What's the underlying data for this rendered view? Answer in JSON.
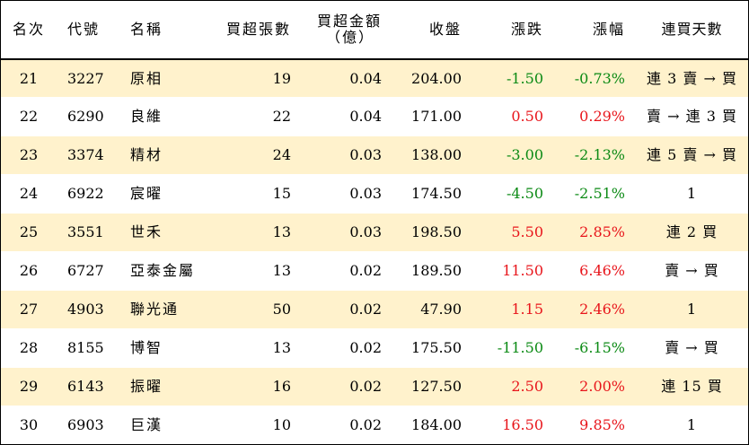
{
  "table": {
    "headers": {
      "rank": "名次",
      "code": "代號",
      "name": "名稱",
      "net_buy_lots": "買超張數",
      "net_buy_amount_line1": "買超金額",
      "net_buy_amount_line2": "（億）",
      "close": "收盤",
      "change": "漲跌",
      "change_pct": "漲幅",
      "streak": "連買天數"
    },
    "rows": [
      {
        "rank": "21",
        "code": "3227",
        "name": "原相",
        "net_buy_lots": "19",
        "net_buy_amount": "0.04",
        "close": "204.00",
        "change": "-1.50",
        "change_pct": "-0.73%",
        "direction": "down",
        "streak": "連 3 賣 → 買"
      },
      {
        "rank": "22",
        "code": "6290",
        "name": "良維",
        "net_buy_lots": "22",
        "net_buy_amount": "0.04",
        "close": "171.00",
        "change": "0.50",
        "change_pct": "0.29%",
        "direction": "up",
        "streak": "賣 → 連 3 買"
      },
      {
        "rank": "23",
        "code": "3374",
        "name": "精材",
        "net_buy_lots": "24",
        "net_buy_amount": "0.03",
        "close": "138.00",
        "change": "-3.00",
        "change_pct": "-2.13%",
        "direction": "down",
        "streak": "連 5 賣 → 買"
      },
      {
        "rank": "24",
        "code": "6922",
        "name": "宸曜",
        "net_buy_lots": "15",
        "net_buy_amount": "0.03",
        "close": "174.50",
        "change": "-4.50",
        "change_pct": "-2.51%",
        "direction": "down",
        "streak": "1"
      },
      {
        "rank": "25",
        "code": "3551",
        "name": "世禾",
        "net_buy_lots": "13",
        "net_buy_amount": "0.03",
        "close": "198.50",
        "change": "5.50",
        "change_pct": "2.85%",
        "direction": "up",
        "streak": "連 2 買"
      },
      {
        "rank": "26",
        "code": "6727",
        "name": "亞泰金屬",
        "net_buy_lots": "13",
        "net_buy_amount": "0.02",
        "close": "189.50",
        "change": "11.50",
        "change_pct": "6.46%",
        "direction": "up",
        "streak": "賣 → 買"
      },
      {
        "rank": "27",
        "code": "4903",
        "name": "聯光通",
        "net_buy_lots": "50",
        "net_buy_amount": "0.02",
        "close": "47.90",
        "change": "1.15",
        "change_pct": "2.46%",
        "direction": "up",
        "streak": "1"
      },
      {
        "rank": "28",
        "code": "8155",
        "name": "博智",
        "net_buy_lots": "13",
        "net_buy_amount": "0.02",
        "close": "175.50",
        "change": "-11.50",
        "change_pct": "-6.15%",
        "direction": "down",
        "streak": "賣 → 買"
      },
      {
        "rank": "29",
        "code": "6143",
        "name": "振曜",
        "net_buy_lots": "16",
        "net_buy_amount": "0.02",
        "close": "127.50",
        "change": "2.50",
        "change_pct": "2.00%",
        "direction": "up",
        "streak": "連 15 買"
      },
      {
        "rank": "30",
        "code": "6903",
        "name": "巨漢",
        "net_buy_lots": "10",
        "net_buy_amount": "0.02",
        "close": "184.00",
        "change": "16.50",
        "change_pct": "9.85%",
        "direction": "up",
        "streak": "1"
      }
    ]
  },
  "colors": {
    "stripe": "#fff2cc",
    "up": "#e8151b",
    "down": "#0b8a14",
    "border": "#000000"
  }
}
